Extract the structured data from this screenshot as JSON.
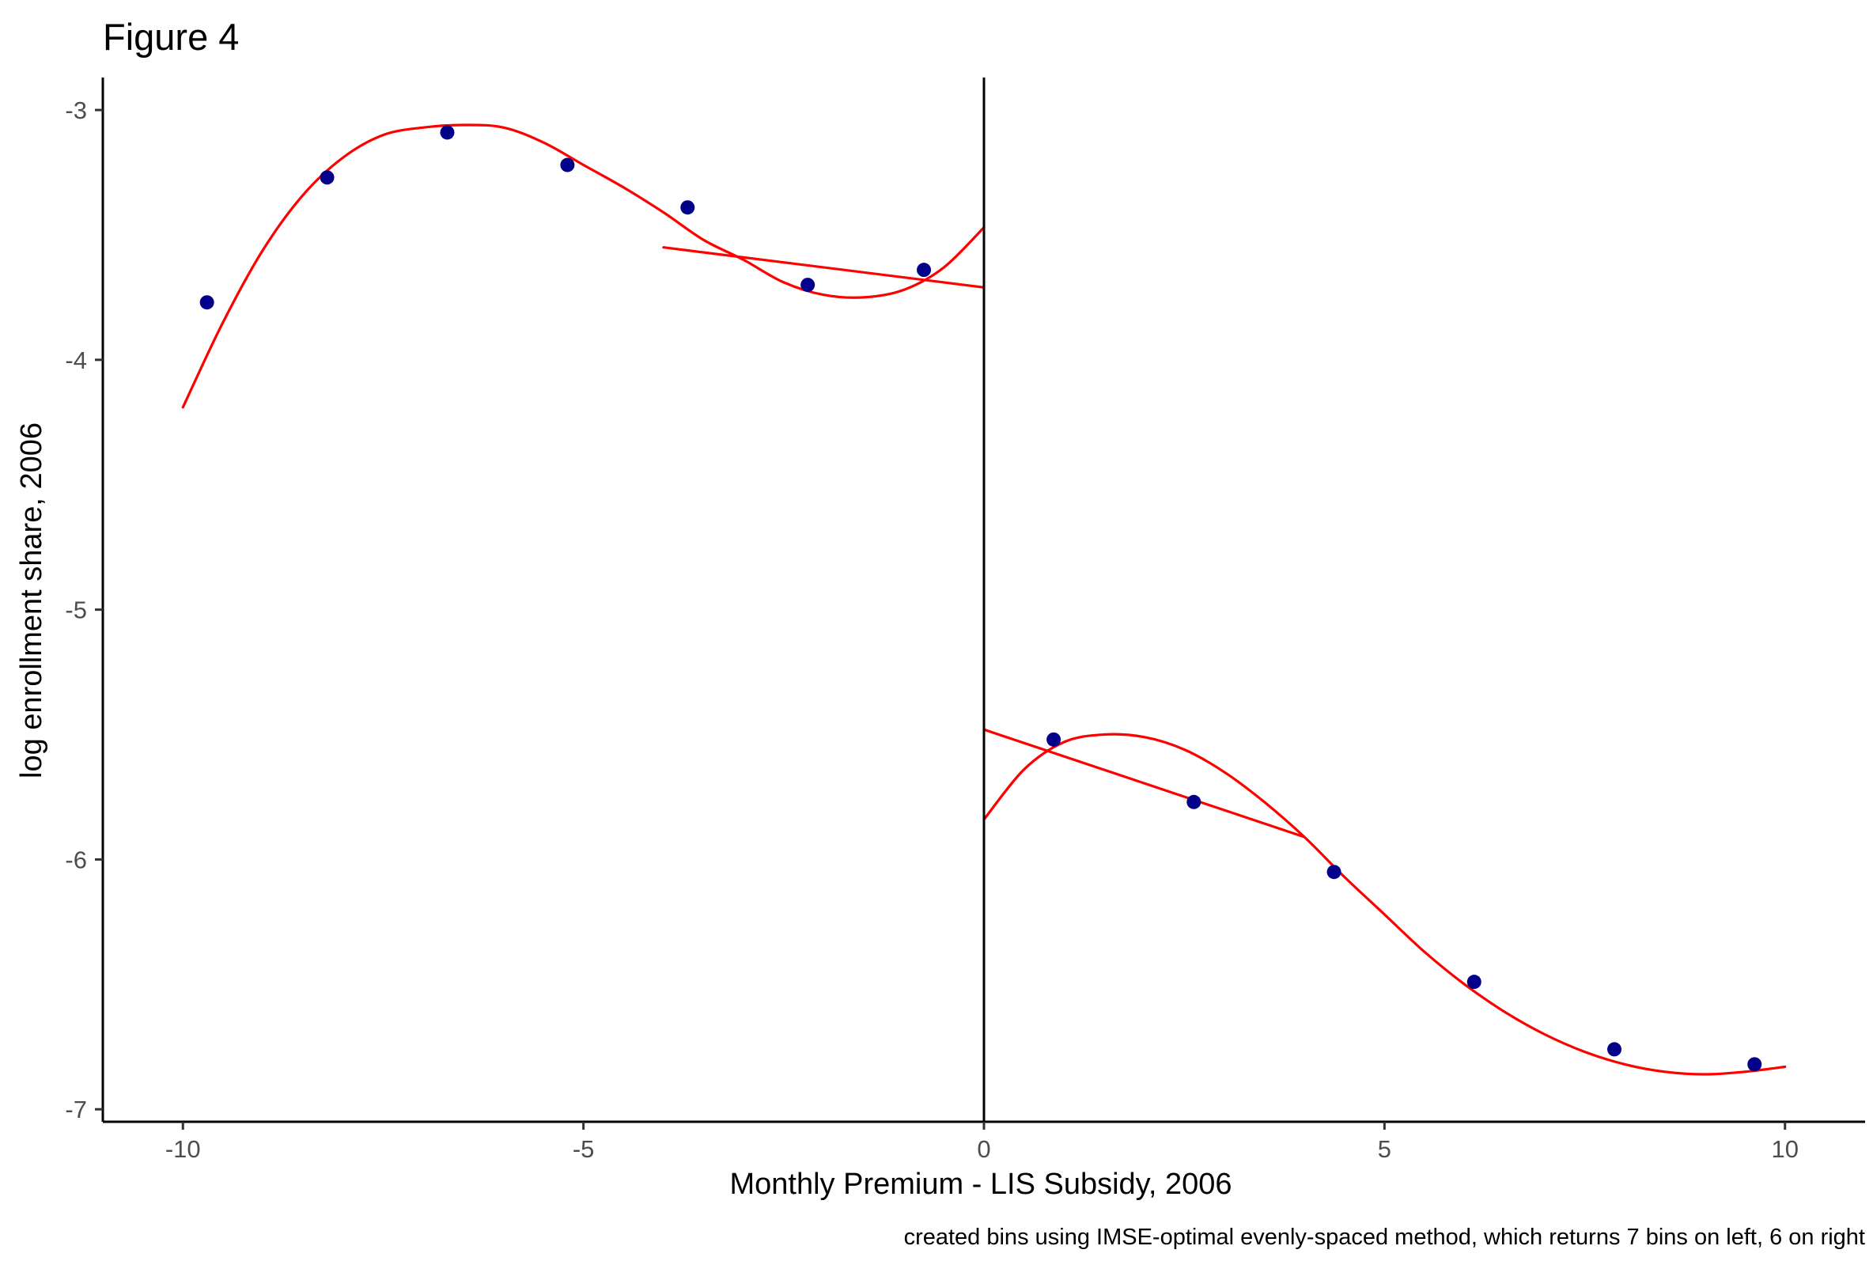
{
  "chart_data": {
    "type": "scatter",
    "title": "Figure 4",
    "xlabel": "Monthly Premium - LIS Subsidy, 2006",
    "ylabel": "log enrollment share, 2006",
    "caption": "created bins using IMSE-optimal evenly-spaced method, which returns 7 bins on left, 6 on right",
    "xlim": [
      -11,
      11
    ],
    "ylim": [
      -7.05,
      -2.87
    ],
    "x_ticks": [
      {
        "value": -10,
        "label": "-10"
      },
      {
        "value": -5,
        "label": "-5"
      },
      {
        "value": 0,
        "label": "0"
      },
      {
        "value": 5,
        "label": "5"
      },
      {
        "value": 10,
        "label": "10"
      }
    ],
    "y_ticks": [
      {
        "value": -3,
        "label": "-3"
      },
      {
        "value": -4,
        "label": "-4"
      },
      {
        "value": -5,
        "label": "-5"
      },
      {
        "value": -6,
        "label": "-6"
      },
      {
        "value": -7,
        "label": "-7"
      }
    ],
    "grid": false,
    "cutoff_x": 0,
    "colors": {
      "points": "#00008b",
      "fit": "#ff0000",
      "axis": "#000000",
      "tick_label": "#4d4d4d"
    },
    "bin_points": [
      {
        "x": -9.7,
        "y": -3.77
      },
      {
        "x": -8.2,
        "y": -3.27
      },
      {
        "x": -6.7,
        "y": -3.09
      },
      {
        "x": -5.2,
        "y": -3.22
      },
      {
        "x": -3.7,
        "y": -3.39
      },
      {
        "x": -2.2,
        "y": -3.7
      },
      {
        "x": -0.75,
        "y": -3.64
      },
      {
        "x": 0.87,
        "y": -5.52
      },
      {
        "x": 2.62,
        "y": -5.77
      },
      {
        "x": 4.37,
        "y": -6.05
      },
      {
        "x": 6.12,
        "y": -6.49
      },
      {
        "x": 7.87,
        "y": -6.76
      },
      {
        "x": 9.62,
        "y": -6.82
      }
    ],
    "fit_lines": [
      {
        "kind": "polynomial",
        "side": "left",
        "points": [
          [
            -10,
            -4.19
          ],
          [
            -9.5,
            -3.85
          ],
          [
            -9,
            -3.56
          ],
          [
            -8.5,
            -3.34
          ],
          [
            -8,
            -3.19
          ],
          [
            -7.5,
            -3.1
          ],
          [
            -7,
            -3.07
          ],
          [
            -6.5,
            -3.06
          ],
          [
            -6,
            -3.07
          ],
          [
            -5.5,
            -3.13
          ],
          [
            -5,
            -3.22
          ],
          [
            -4.5,
            -3.31
          ],
          [
            -4,
            -3.41
          ],
          [
            -3.5,
            -3.52
          ],
          [
            -3,
            -3.6
          ],
          [
            -2.5,
            -3.69
          ],
          [
            -2,
            -3.74
          ],
          [
            -1.5,
            -3.75
          ],
          [
            -1,
            -3.72
          ],
          [
            -0.5,
            -3.63
          ],
          [
            0,
            -3.47
          ]
        ]
      },
      {
        "kind": "linear",
        "side": "left",
        "points": [
          [
            -4,
            -3.55
          ],
          [
            0,
            -3.71
          ]
        ]
      },
      {
        "kind": "polynomial",
        "side": "right",
        "points": [
          [
            0,
            -5.84
          ],
          [
            0.5,
            -5.64
          ],
          [
            1,
            -5.53
          ],
          [
            1.5,
            -5.5
          ],
          [
            2,
            -5.51
          ],
          [
            2.5,
            -5.56
          ],
          [
            3,
            -5.65
          ],
          [
            3.5,
            -5.77
          ],
          [
            4,
            -5.91
          ],
          [
            4.5,
            -6.07
          ],
          [
            5,
            -6.22
          ],
          [
            5.5,
            -6.37
          ],
          [
            6,
            -6.5
          ],
          [
            6.5,
            -6.61
          ],
          [
            7,
            -6.7
          ],
          [
            7.5,
            -6.77
          ],
          [
            8,
            -6.82
          ],
          [
            8.5,
            -6.85
          ],
          [
            9,
            -6.86
          ],
          [
            9.5,
            -6.85
          ],
          [
            10,
            -6.83
          ]
        ]
      },
      {
        "kind": "linear",
        "side": "right",
        "points": [
          [
            0,
            -5.48
          ],
          [
            4,
            -5.91
          ]
        ]
      }
    ]
  }
}
